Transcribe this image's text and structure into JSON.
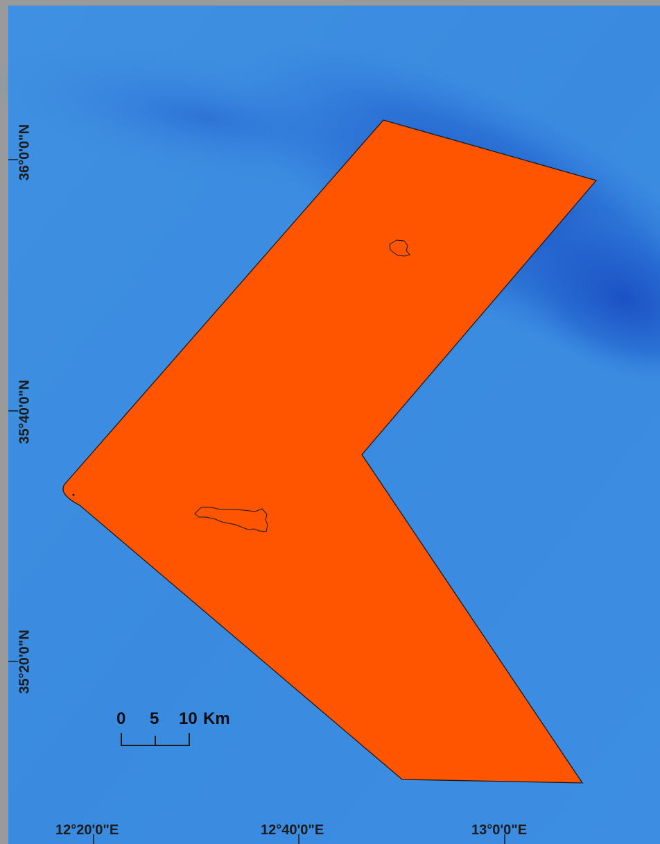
{
  "map": {
    "colors": {
      "frame": "#9a9a9a",
      "sea": "#3a8ce0",
      "deep_sea": "#1f5fcc",
      "zone_fill": "#ff5500",
      "outline": "#1a1a1a"
    },
    "latitude_labels": [
      "36°0'0\"N",
      "35°40'0\"N",
      "35°20'0\"N"
    ],
    "longitude_labels": [
      "12°20'0\"E",
      "12°40'0\"E",
      "13°0'0\"E"
    ],
    "scale_bar": {
      "ticks": [
        "0",
        "5",
        "10"
      ],
      "unit": "Km"
    }
  }
}
